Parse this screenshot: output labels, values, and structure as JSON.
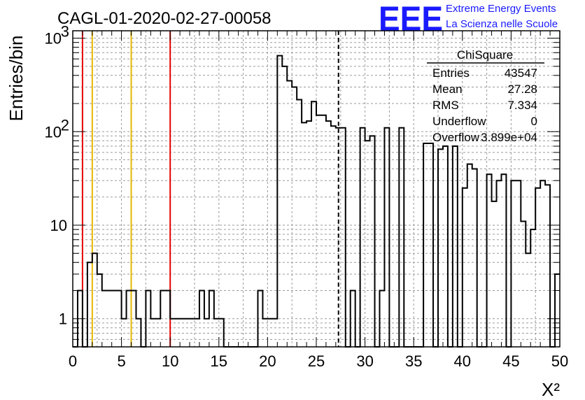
{
  "header": {
    "histogram_title": "CAGL-01-2020-02-27-00058",
    "logo_letters": "EEE",
    "logo_line1": "Extreme Energy Events",
    "logo_line2": "La Scienza nelle Scuole",
    "logo_color": "#1a1aff"
  },
  "chart_data": {
    "type": "bar",
    "style": "step-histogram",
    "title": "CAGL-01-2020-02-27-00058",
    "xlabel": "X²",
    "ylabel": "Entries/bin",
    "xlim": [
      0,
      50
    ],
    "ylim": [
      0.5,
      1200
    ],
    "yscale": "log",
    "grid": true,
    "bin_width": 0.5,
    "x_ticks": [
      "0",
      "5",
      "10",
      "15",
      "20",
      "25",
      "30",
      "35",
      "40",
      "45",
      "50"
    ],
    "y_ticks": [
      {
        "value": 1,
        "label": "1"
      },
      {
        "value": 10,
        "label": "10"
      },
      {
        "value": 100,
        "label": "10",
        "exp": "2"
      },
      {
        "value": 1000,
        "label": "10",
        "exp": "3"
      }
    ],
    "values": [
      0,
      2,
      0,
      4,
      5,
      3,
      2,
      2,
      2,
      2,
      1,
      2,
      2,
      1,
      0,
      2,
      1,
      1,
      2,
      2,
      1,
      1,
      1,
      1,
      1,
      1,
      2,
      1,
      2,
      1,
      1,
      0,
      0,
      0,
      0,
      0,
      0,
      0,
      2,
      1,
      1,
      1,
      650,
      500,
      350,
      300,
      220,
      125,
      130,
      210,
      150,
      150,
      130,
      115,
      110,
      110,
      0,
      2,
      0,
      110,
      80,
      90,
      0,
      2,
      110,
      0,
      0,
      110,
      0,
      0,
      0,
      0,
      75,
      75,
      0,
      65,
      70,
      0,
      70,
      0,
      25,
      45,
      40,
      0,
      0,
      35,
      18,
      30,
      35,
      0,
      30,
      30,
      11,
      5,
      9,
      25,
      30,
      27,
      0,
      3,
      1,
      27
    ],
    "reference_lines": [
      {
        "x": 1,
        "color": "#e60000",
        "style": "solid"
      },
      {
        "x": 2,
        "color": "#e6b800",
        "style": "solid"
      },
      {
        "x": 6,
        "color": "#e6b800",
        "style": "solid"
      },
      {
        "x": 10,
        "color": "#e60000",
        "style": "solid"
      },
      {
        "x": 27.28,
        "color": "#000000",
        "style": "dashed"
      }
    ],
    "stats_box": {
      "title": "ChiSquare",
      "rows": [
        {
          "label": "Entries",
          "value": "43547"
        },
        {
          "label": "Mean",
          "value": "27.28"
        },
        {
          "label": "RMS",
          "value": "7.334"
        },
        {
          "label": "Underflow",
          "value": "0"
        },
        {
          "label": "Overflow",
          "value": "3.899e+04"
        }
      ]
    }
  }
}
